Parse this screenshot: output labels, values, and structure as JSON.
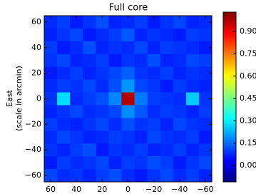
{
  "chart_data": {
    "type": "heatmap",
    "title": "Full core",
    "ylabel": [
      "East",
      "(scale in arcmin)"
    ],
    "colormap": "jet",
    "x": [
      60,
      50,
      40,
      30,
      20,
      10,
      0,
      -10,
      -20,
      -30,
      -40,
      -50,
      -60
    ],
    "y": [
      60,
      50,
      40,
      30,
      20,
      10,
      0,
      -10,
      -20,
      -30,
      -40,
      -50,
      -60
    ],
    "xlim": [
      65,
      -65
    ],
    "ylim": [
      -65,
      65
    ],
    "xticks": [
      60,
      40,
      20,
      0,
      {
        "value": -20,
        "label": "−20"
      },
      {
        "value": -40,
        "label": "−40"
      },
      {
        "value": -60,
        "label": "−60"
      }
    ],
    "yticks": [
      60,
      40,
      20,
      0,
      {
        "value": -20,
        "label": "−20"
      },
      {
        "value": -40,
        "label": "−40"
      },
      {
        "value": -60,
        "label": "−60"
      }
    ],
    "z": [
      [
        0.08,
        0.1,
        0.06,
        0.09,
        0.12,
        0.07,
        0.08,
        0.1,
        0.06,
        0.09,
        0.11,
        0.07,
        0.08
      ],
      [
        0.07,
        0.09,
        0.11,
        0.06,
        0.08,
        0.1,
        0.13,
        0.07,
        0.09,
        0.08,
        0.06,
        0.1,
        0.09
      ],
      [
        0.1,
        0.06,
        0.08,
        0.12,
        0.07,
        0.09,
        0.08,
        0.11,
        0.07,
        0.1,
        0.09,
        0.08,
        0.06
      ],
      [
        0.09,
        0.11,
        0.07,
        0.08,
        0.1,
        0.06,
        0.09,
        0.08,
        0.12,
        0.07,
        0.08,
        0.11,
        0.1
      ],
      [
        0.06,
        0.08,
        0.1,
        0.07,
        0.09,
        0.11,
        0.14,
        0.09,
        0.08,
        0.1,
        0.07,
        0.09,
        0.08
      ],
      [
        0.08,
        0.1,
        0.09,
        0.11,
        0.08,
        0.12,
        0.2,
        0.11,
        0.09,
        0.06,
        0.1,
        0.08,
        0.07
      ],
      [
        0.09,
        0.28,
        0.08,
        0.1,
        0.12,
        0.18,
        0.97,
        0.17,
        0.1,
        0.09,
        0.08,
        0.26,
        0.09
      ],
      [
        0.07,
        0.09,
        0.11,
        0.08,
        0.09,
        0.11,
        0.19,
        0.13,
        0.08,
        0.1,
        0.09,
        0.07,
        0.1
      ],
      [
        0.1,
        0.08,
        0.07,
        0.09,
        0.11,
        0.08,
        0.12,
        0.09,
        0.1,
        0.07,
        0.11,
        0.09,
        0.08
      ],
      [
        0.08,
        0.11,
        0.09,
        0.07,
        0.08,
        0.1,
        0.09,
        0.07,
        0.11,
        0.09,
        0.08,
        0.1,
        0.06
      ],
      [
        0.09,
        0.07,
        0.1,
        0.12,
        0.06,
        0.09,
        0.08,
        0.1,
        0.07,
        0.08,
        0.1,
        0.07,
        0.09
      ],
      [
        0.06,
        0.1,
        0.08,
        0.09,
        0.11,
        0.07,
        0.1,
        0.09,
        0.12,
        0.1,
        0.06,
        0.09,
        0.11
      ],
      [
        0.11,
        0.08,
        0.09,
        0.07,
        0.1,
        0.12,
        0.08,
        0.06,
        0.09,
        0.11,
        0.08,
        0.1,
        0.07
      ]
    ],
    "clim": [
      -0.11,
      1.03
    ],
    "cticks": [
      {
        "value": 0,
        "label": "0.00"
      },
      {
        "value": 0.15,
        "label": "0.15"
      },
      {
        "value": 0.3,
        "label": "0.30"
      },
      {
        "value": 0.45,
        "label": "0.45"
      },
      {
        "value": 0.6,
        "label": "0.60"
      },
      {
        "value": 0.75,
        "label": "0.75"
      },
      {
        "value": 0.9,
        "label": "0.90"
      }
    ]
  }
}
